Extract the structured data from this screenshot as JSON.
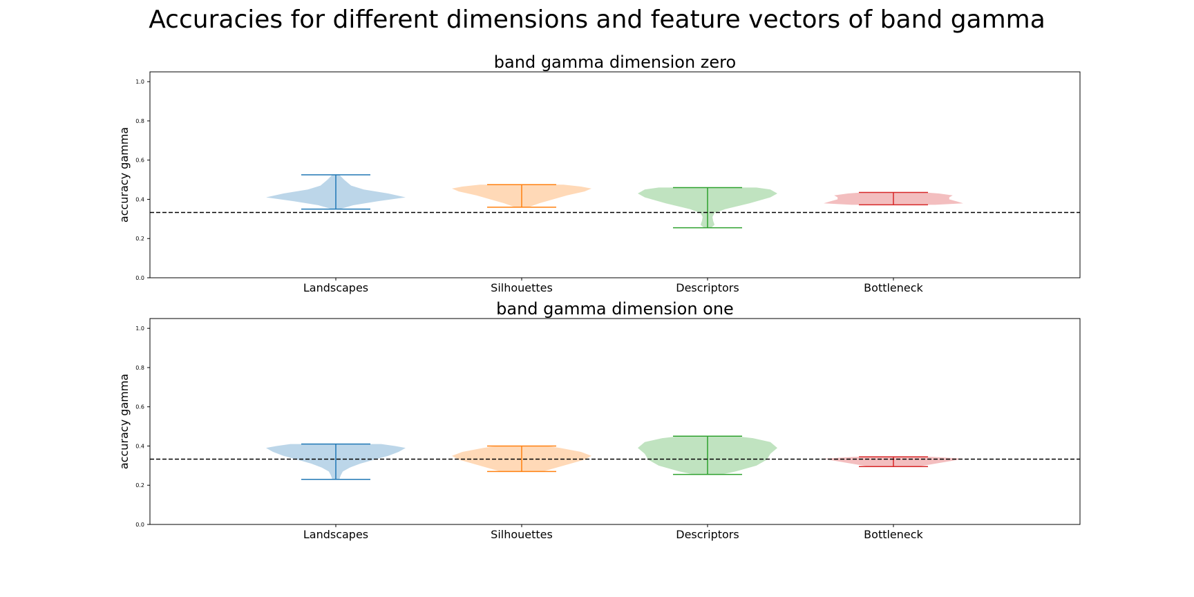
{
  "suptitle": "Accuracies for different dimensions and feature vectors of band gamma",
  "chart_data": [
    {
      "type": "violin",
      "title": "band gamma dimension zero",
      "ylabel": "accuracy gamma",
      "xlabel": "",
      "ylim": [
        0.0,
        1.05
      ],
      "yticks": [
        "0.0",
        "0.2",
        "0.4",
        "0.6",
        "0.8",
        "1.0"
      ],
      "categories": [
        "Landscapes",
        "Silhouettes",
        "Descriptors",
        "Bottleneck"
      ],
      "colors": [
        "#1f77b4",
        "#ff7f0e",
        "#2ca02c",
        "#d62728"
      ],
      "baseline": 0.333,
      "violins": [
        {
          "min": 0.35,
          "max": 0.525,
          "profile": [
            [
              0.35,
              0.05
            ],
            [
              0.37,
              0.25
            ],
            [
              0.39,
              0.6
            ],
            [
              0.41,
              1.0
            ],
            [
              0.43,
              0.75
            ],
            [
              0.45,
              0.4
            ],
            [
              0.47,
              0.22
            ],
            [
              0.5,
              0.12
            ],
            [
              0.525,
              0.05
            ]
          ]
        },
        {
          "min": 0.36,
          "max": 0.475,
          "profile": [
            [
              0.36,
              0.1
            ],
            [
              0.38,
              0.25
            ],
            [
              0.4,
              0.45
            ],
            [
              0.42,
              0.65
            ],
            [
              0.44,
              0.9
            ],
            [
              0.455,
              1.0
            ],
            [
              0.465,
              0.85
            ],
            [
              0.475,
              0.6
            ]
          ]
        },
        {
          "min": 0.255,
          "max": 0.46,
          "profile": [
            [
              0.255,
              0.05
            ],
            [
              0.27,
              0.1
            ],
            [
              0.29,
              0.08
            ],
            [
              0.31,
              0.07
            ],
            [
              0.33,
              0.1
            ],
            [
              0.35,
              0.25
            ],
            [
              0.38,
              0.6
            ],
            [
              0.41,
              0.9
            ],
            [
              0.43,
              1.0
            ],
            [
              0.45,
              0.9
            ],
            [
              0.46,
              0.7
            ]
          ]
        },
        {
          "min": 0.372,
          "max": 0.435,
          "profile": [
            [
              0.372,
              0.6
            ],
            [
              0.38,
              1.0
            ],
            [
              0.39,
              0.9
            ],
            [
              0.4,
              0.8
            ],
            [
              0.41,
              0.8
            ],
            [
              0.42,
              0.85
            ],
            [
              0.43,
              0.65
            ],
            [
              0.435,
              0.45
            ]
          ]
        }
      ]
    },
    {
      "type": "violin",
      "title": "band gamma dimension one",
      "ylabel": "accuracy gamma",
      "xlabel": "",
      "ylim": [
        0.0,
        1.05
      ],
      "yticks": [
        "0.0",
        "0.2",
        "0.4",
        "0.6",
        "0.8",
        "1.0"
      ],
      "categories": [
        "Landscapes",
        "Silhouettes",
        "Descriptors",
        "Bottleneck"
      ],
      "colors": [
        "#1f77b4",
        "#ff7f0e",
        "#2ca02c",
        "#d62728"
      ],
      "baseline": 0.333,
      "violins": [
        {
          "min": 0.23,
          "max": 0.41,
          "profile": [
            [
              0.23,
              0.05
            ],
            [
              0.25,
              0.07
            ],
            [
              0.27,
              0.1
            ],
            [
              0.29,
              0.2
            ],
            [
              0.31,
              0.35
            ],
            [
              0.33,
              0.55
            ],
            [
              0.35,
              0.75
            ],
            [
              0.37,
              0.9
            ],
            [
              0.39,
              1.0
            ],
            [
              0.4,
              0.85
            ],
            [
              0.41,
              0.65
            ]
          ]
        },
        {
          "min": 0.27,
          "max": 0.4,
          "profile": [
            [
              0.27,
              0.3
            ],
            [
              0.29,
              0.5
            ],
            [
              0.31,
              0.7
            ],
            [
              0.33,
              0.9
            ],
            [
              0.35,
              1.0
            ],
            [
              0.37,
              0.85
            ],
            [
              0.39,
              0.55
            ],
            [
              0.4,
              0.35
            ]
          ]
        },
        {
          "min": 0.255,
          "max": 0.45,
          "profile": [
            [
              0.255,
              0.2
            ],
            [
              0.27,
              0.4
            ],
            [
              0.3,
              0.7
            ],
            [
              0.33,
              0.85
            ],
            [
              0.36,
              0.9
            ],
            [
              0.39,
              1.0
            ],
            [
              0.42,
              0.9
            ],
            [
              0.44,
              0.65
            ],
            [
              0.45,
              0.4
            ]
          ]
        },
        {
          "min": 0.295,
          "max": 0.345,
          "profile": [
            [
              0.295,
              0.35
            ],
            [
              0.31,
              0.6
            ],
            [
              0.325,
              0.85
            ],
            [
              0.335,
              1.0
            ],
            [
              0.345,
              0.55
            ]
          ]
        }
      ]
    }
  ]
}
